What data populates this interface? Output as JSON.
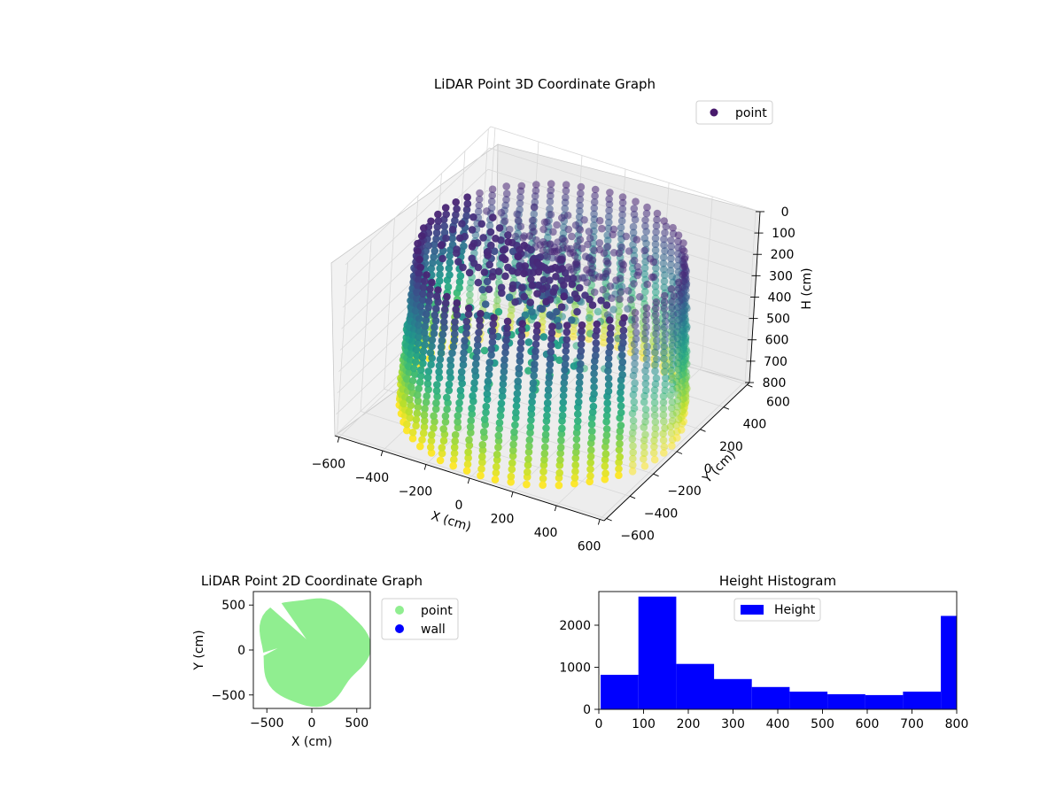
{
  "chart_data": [
    {
      "type": "scatter3d",
      "title": "LiDAR Point 3D Coordinate Graph",
      "xlabel": "X (cm)",
      "ylabel": "Y (cm)",
      "zlabel": "H (cm)",
      "xlim": [
        -620,
        620
      ],
      "ylim": [
        -620,
        620
      ],
      "zlim": [
        800,
        0
      ],
      "x_ticks": [
        -600,
        -400,
        -200,
        0,
        200,
        400,
        600
      ],
      "y_ticks": [
        -600,
        -400,
        -200,
        0,
        200,
        400,
        600
      ],
      "z_ticks": [
        0,
        100,
        200,
        300,
        400,
        500,
        600,
        700,
        800
      ],
      "x_tick_labels": [
        "−600",
        "−400",
        "−200",
        "0",
        "200",
        "400",
        "600"
      ],
      "y_tick_labels": [
        "−600",
        "−400",
        "−200",
        "0",
        "200",
        "400",
        "600"
      ],
      "z_tick_labels": [
        "0",
        "100",
        "200",
        "300",
        "400",
        "500",
        "600",
        "700",
        "800"
      ],
      "colormap": "viridis (color by height H)",
      "legend": [
        "point"
      ],
      "legend_placement": "top-right",
      "grid": true,
      "series": [
        {
          "name": "point",
          "shape": "cylindrical wall of vertical scan columns (radius ≈ 580 cm, H 80–800 cm) with a ceiling spiral near H ≈ 100 cm and a sparse interior cluster",
          "wall_radius": 580,
          "wall_h_range": [
            80,
            800
          ],
          "column_count": 56,
          "points_per_column": 26
        }
      ]
    },
    {
      "type": "scatter",
      "title": "LiDAR Point 2D Coordinate Graph",
      "xlabel": "X (cm)",
      "ylabel": "Y (cm)",
      "xlim": [
        -650,
        650
      ],
      "ylim": [
        -650,
        650
      ],
      "x_ticks": [
        -500,
        0,
        500
      ],
      "y_ticks": [
        -500,
        0,
        500
      ],
      "x_tick_labels": [
        "−500",
        "0",
        "500"
      ],
      "y_tick_labels": [
        "−500",
        "0",
        "500"
      ],
      "legend": [
        "point",
        "wall"
      ],
      "legend_placement": "outside right",
      "series": [
        {
          "name": "point",
          "color": "#90ee90",
          "shape": "filled disc radius ≈ 600 cm with a wedge gap near (-400, 300)"
        },
        {
          "name": "wall",
          "color": "#0000ff",
          "points": []
        }
      ]
    },
    {
      "type": "bar",
      "title": "Height Histogram",
      "xlabel": "",
      "ylabel": "",
      "xlim": [
        0,
        800
      ],
      "ylim": [
        0,
        2800
      ],
      "x_ticks": [
        0,
        100,
        200,
        300,
        400,
        500,
        600,
        700,
        800
      ],
      "y_ticks": [
        0,
        1000,
        2000
      ],
      "x_tick_labels": [
        "0",
        "100",
        "200",
        "300",
        "400",
        "500",
        "600",
        "700",
        "800"
      ],
      "y_tick_labels": [
        "0",
        "1000",
        "2000"
      ],
      "bin_edges": [
        4,
        88.5,
        173,
        257.5,
        342,
        426.5,
        511,
        595.5,
        680,
        764.5,
        800
      ],
      "series": [
        {
          "name": "Height",
          "color": "#0000ff",
          "values": [
            820,
            2680,
            1080,
            720,
            530,
            420,
            360,
            340,
            420,
            2220
          ]
        }
      ],
      "legend": [
        "Height"
      ],
      "legend_placement": "top-center"
    }
  ]
}
